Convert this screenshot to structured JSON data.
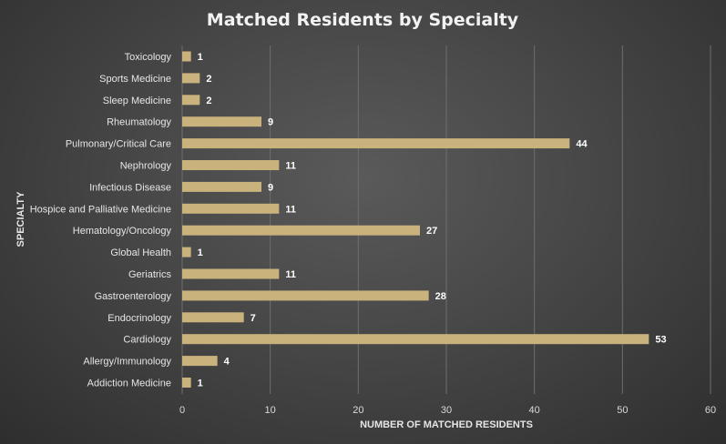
{
  "chart_data": {
    "type": "bar",
    "orientation": "horizontal",
    "title": "Matched Residents by Specialty",
    "xlabel": "NUMBER OF MATCHED RESIDENTS",
    "ylabel": "SPECIALTY",
    "xlim": [
      0,
      60
    ],
    "xticks": [
      0,
      10,
      20,
      30,
      40,
      50,
      60
    ],
    "grid": true,
    "bar_color": "#c9b27c",
    "categories": [
      "Toxicology",
      "Sports Medicine",
      "Sleep Medicine",
      "Rheumatology",
      "Pulmonary/Critical Care",
      "Nephrology",
      "Infectious Disease",
      "Hospice and Palliative Medicine",
      "Hematology/Oncology",
      "Global Health",
      "Geriatrics",
      "Gastroenterology",
      "Endocrinology",
      "Cardiology",
      "Allergy/Immunology",
      "Addiction Medicine"
    ],
    "values": [
      1,
      2,
      2,
      9,
      44,
      11,
      9,
      11,
      27,
      1,
      11,
      28,
      7,
      53,
      4,
      1
    ]
  }
}
